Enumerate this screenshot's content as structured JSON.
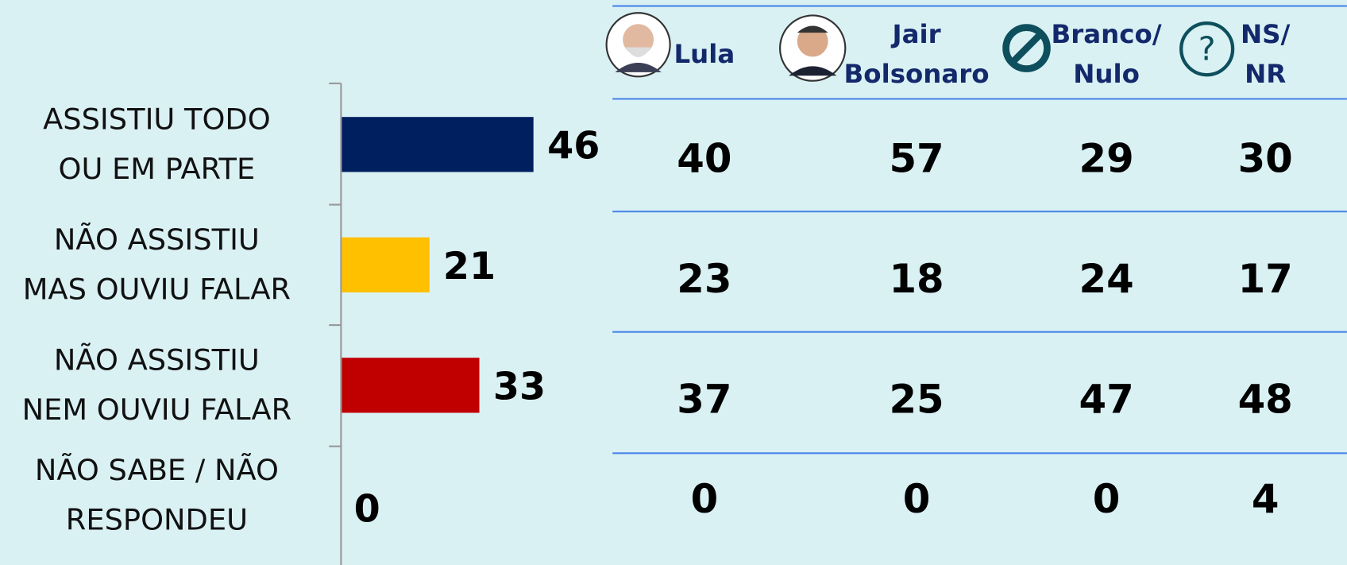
{
  "chart_data": {
    "type": "bar",
    "orientation": "horizontal",
    "categories": [
      "ASSISTIU TODO\nOU EM PARTE",
      "NÃO ASSISTIU\nMAS OUVIU FALAR",
      "NÃO ASSISTIU\nNEM OUVIU FALAR",
      "NÃO SABE / NÃO\nRESPONDEU"
    ],
    "values": [
      46,
      21,
      33,
      0
    ],
    "colors": [
      "#001f5f",
      "#ffc000",
      "#c00000",
      "#7f7f7f"
    ],
    "table": {
      "columns": [
        "Lula",
        "Jair\nBolsonaro",
        "Branco/\nNulo",
        "NS/\nNR"
      ],
      "rows": [
        [
          40,
          57,
          29,
          30
        ],
        [
          23,
          18,
          24,
          17
        ],
        [
          37,
          25,
          47,
          48
        ],
        [
          0,
          0,
          0,
          4
        ]
      ]
    }
  }
}
